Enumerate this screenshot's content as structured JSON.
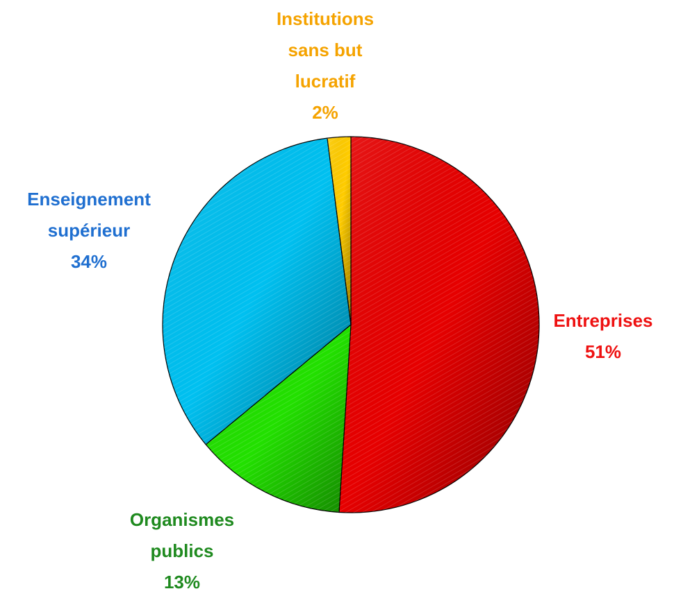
{
  "chart_data": {
    "type": "pie",
    "categories": [
      "Entreprises",
      "Organismes publics",
      "Enseignement supérieur",
      "Institutions sans but lucratif"
    ],
    "values": [
      51,
      13,
      34,
      2
    ],
    "value_labels": [
      "51%",
      "13%",
      "34%",
      "2%"
    ],
    "colors": [
      "#e60000",
      "#22e000",
      "#00c0f0",
      "#ffcc00"
    ],
    "label_colors": [
      "#ee1111",
      "#1f8a1f",
      "#1f6fd0",
      "#f5a300"
    ]
  }
}
